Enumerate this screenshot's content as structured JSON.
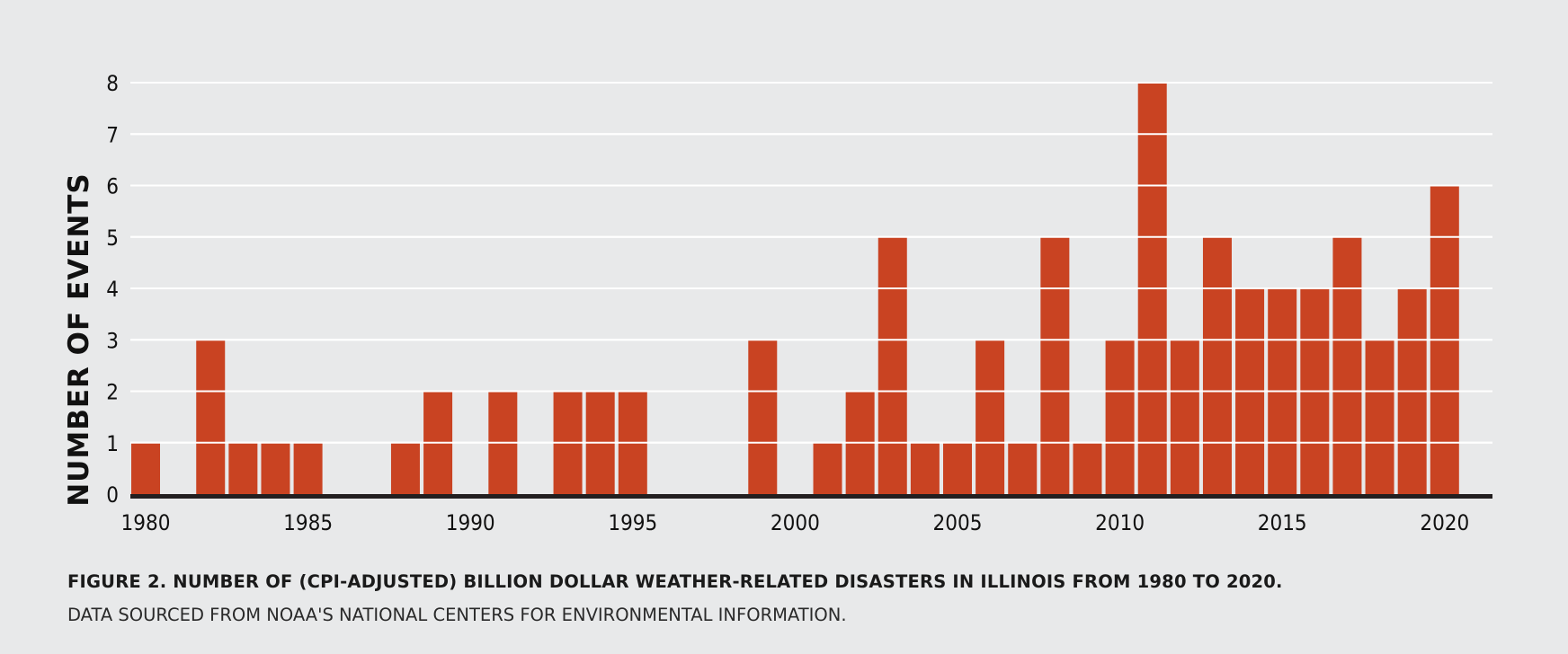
{
  "chart_data": {
    "type": "bar",
    "ylabel": "NUMBER OF EVENTS",
    "xlabel": "",
    "ylim": [
      0,
      8
    ],
    "yticks": [
      0,
      1,
      2,
      3,
      4,
      5,
      6,
      7,
      8
    ],
    "xtick_labels": [
      "1980",
      "1985",
      "1990",
      "1995",
      "2000",
      "2005",
      "2010",
      "2015",
      "2020"
    ],
    "categories": [
      1980,
      1981,
      1982,
      1983,
      1984,
      1985,
      1986,
      1987,
      1988,
      1989,
      1990,
      1991,
      1992,
      1993,
      1994,
      1995,
      1996,
      1997,
      1998,
      1999,
      2000,
      2001,
      2002,
      2003,
      2004,
      2005,
      2006,
      2007,
      2008,
      2009,
      2010,
      2011,
      2012,
      2013,
      2014,
      2015,
      2016,
      2017,
      2018,
      2019,
      2020
    ],
    "values": [
      1,
      0,
      3,
      1,
      1,
      1,
      0,
      0,
      1,
      2,
      0,
      2,
      0,
      2,
      2,
      2,
      0,
      0,
      0,
      3,
      0,
      1,
      2,
      5,
      1,
      1,
      3,
      1,
      5,
      1,
      3,
      8,
      3,
      5,
      4,
      4,
      4,
      5,
      3,
      4,
      6
    ],
    "grid": true,
    "bar_color": "#c94322",
    "grid_color": "#ffffff",
    "axis_color": "#231f20"
  },
  "caption": {
    "title": "FIGURE 2. NUMBER OF (CPI-ADJUSTED) BILLION DOLLAR WEATHER-RELATED DISASTERS IN ILLINOIS FROM 1980 TO 2020.",
    "source": "DATA SOURCED FROM NOAA'S NATIONAL CENTERS FOR ENVIRONMENTAL INFORMATION."
  }
}
